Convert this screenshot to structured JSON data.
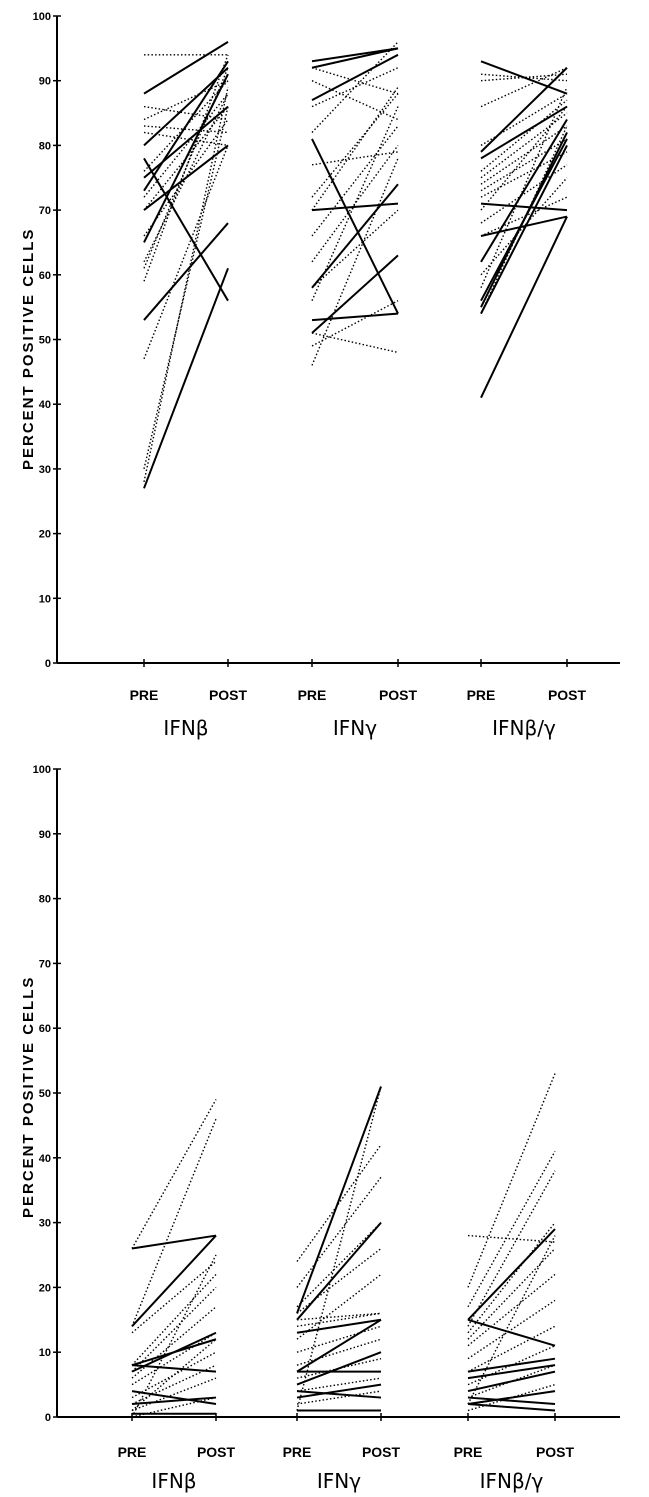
{
  "chart_data": [
    {
      "type": "line",
      "ylabel": "PERCENT POSITIVE CELLS",
      "ylim": [
        0,
        100
      ],
      "yticks": [
        "0",
        "10",
        "20",
        "30",
        "40",
        "50",
        "60",
        "70",
        "80",
        "90",
        "100"
      ],
      "groups": [
        {
          "name": "IFNβ",
          "x": [
            "PRE",
            "POST"
          ],
          "solid_pairs": [
            [
              88,
              96
            ],
            [
              80,
              92
            ],
            [
              78,
              56
            ],
            [
              75,
              86
            ],
            [
              73,
              93
            ],
            [
              65,
              91
            ],
            [
              70,
              80
            ],
            [
              53,
              68
            ],
            [
              27,
              61
            ]
          ],
          "dotted_pairs": [
            [
              94,
              94
            ],
            [
              86,
              84
            ],
            [
              84,
              90
            ],
            [
              83,
              82
            ],
            [
              82,
              80
            ],
            [
              76,
              90
            ],
            [
              72,
              88
            ],
            [
              70,
              86
            ],
            [
              66,
              84
            ],
            [
              62,
              88
            ],
            [
              61,
              92
            ],
            [
              59,
              94
            ],
            [
              47,
              80
            ],
            [
              30,
              86
            ],
            [
              28,
              89
            ]
          ]
        },
        {
          "name": "IFNγ",
          "x": [
            "PRE",
            "POST"
          ],
          "solid_pairs": [
            [
              93,
              95
            ],
            [
              92,
              95
            ],
            [
              87,
              94
            ],
            [
              81,
              54
            ],
            [
              70,
              71
            ],
            [
              58,
              74
            ],
            [
              53,
              54
            ],
            [
              51,
              63
            ]
          ],
          "dotted_pairs": [
            [
              92,
              88
            ],
            [
              90,
              84
            ],
            [
              86,
              92
            ],
            [
              82,
              96
            ],
            [
              77,
              79
            ],
            [
              72,
              88
            ],
            [
              70,
              89
            ],
            [
              66,
              83
            ],
            [
              62,
              80
            ],
            [
              58,
              70
            ],
            [
              56,
              86
            ],
            [
              51,
              48
            ],
            [
              49,
              56
            ],
            [
              46,
              78
            ]
          ]
        },
        {
          "name": "IFNβ/γ",
          "x": [
            "PRE",
            "POST"
          ],
          "solid_pairs": [
            [
              93,
              88
            ],
            [
              79,
              92
            ],
            [
              78,
              86
            ],
            [
              71,
              70
            ],
            [
              66,
              69
            ],
            [
              62,
              84
            ],
            [
              56,
              81
            ],
            [
              55,
              82
            ],
            [
              54,
              80
            ],
            [
              41,
              69
            ]
          ],
          "dotted_pairs": [
            [
              91,
              90
            ],
            [
              90,
              91
            ],
            [
              86,
              92
            ],
            [
              80,
              88
            ],
            [
              76,
              87
            ],
            [
              75,
              85
            ],
            [
              74,
              83
            ],
            [
              73,
              81
            ],
            [
              72,
              79
            ],
            [
              70,
              86
            ],
            [
              68,
              77
            ],
            [
              66,
              72
            ],
            [
              60,
              75
            ],
            [
              58,
              89
            ],
            [
              54,
              83
            ]
          ]
        }
      ]
    },
    {
      "type": "line",
      "ylabel": "PERCENT POSITIVE CELLS",
      "ylim": [
        0,
        100
      ],
      "yticks": [
        "0",
        "10",
        "20",
        "30",
        "40",
        "50",
        "60",
        "70",
        "80",
        "90",
        "100"
      ],
      "groups": [
        {
          "name": "IFNβ",
          "x": [
            "PRE",
            "POST"
          ],
          "solid_pairs": [
            [
              26,
              28
            ],
            [
              14,
              28
            ],
            [
              8,
              12
            ],
            [
              7,
              13
            ],
            [
              8,
              7
            ],
            [
              4,
              2
            ],
            [
              2,
              3
            ],
            [
              0.5,
              0.5
            ]
          ],
          "dotted_pairs": [
            [
              26,
              49
            ],
            [
              14,
              46
            ],
            [
              13,
              24
            ],
            [
              8,
              22
            ],
            [
              7,
              20
            ],
            [
              6,
              17
            ],
            [
              5,
              13
            ],
            [
              3,
              10
            ],
            [
              2,
              8
            ],
            [
              1,
              6
            ],
            [
              1,
              12
            ],
            [
              0,
              3
            ],
            [
              0,
              25
            ]
          ]
        },
        {
          "name": "IFNγ",
          "x": [
            "PRE",
            "POST"
          ],
          "solid_pairs": [
            [
              16,
              51
            ],
            [
              15,
              30
            ],
            [
              13,
              15
            ],
            [
              7,
              15
            ],
            [
              7,
              7
            ],
            [
              5,
              10
            ],
            [
              4,
              3
            ],
            [
              3,
              5
            ],
            [
              1,
              1
            ]
          ],
          "dotted_pairs": [
            [
              24,
              42
            ],
            [
              20,
              37
            ],
            [
              17,
              30
            ],
            [
              16,
              26
            ],
            [
              15,
              16
            ],
            [
              14,
              16
            ],
            [
              12,
              22
            ],
            [
              10,
              14
            ],
            [
              8,
              12
            ],
            [
              6,
              9
            ],
            [
              4,
              6
            ],
            [
              2,
              4
            ],
            [
              1,
              51
            ]
          ]
        },
        {
          "name": "IFNβ/γ",
          "x": [
            "PRE",
            "POST"
          ],
          "solid_pairs": [
            [
              15,
              29
            ],
            [
              15,
              11
            ],
            [
              7,
              9
            ],
            [
              6,
              8
            ],
            [
              4,
              7
            ],
            [
              3,
              2
            ],
            [
              2,
              4
            ],
            [
              2,
              1
            ]
          ],
          "dotted_pairs": [
            [
              28,
              27
            ],
            [
              20,
              53
            ],
            [
              17,
              41
            ],
            [
              14,
              38
            ],
            [
              13,
              30
            ],
            [
              12,
              26
            ],
            [
              11,
              22
            ],
            [
              9,
              18
            ],
            [
              7,
              14
            ],
            [
              5,
              11
            ],
            [
              3,
              8
            ],
            [
              1,
              5
            ],
            [
              2,
              28
            ]
          ]
        }
      ]
    }
  ]
}
